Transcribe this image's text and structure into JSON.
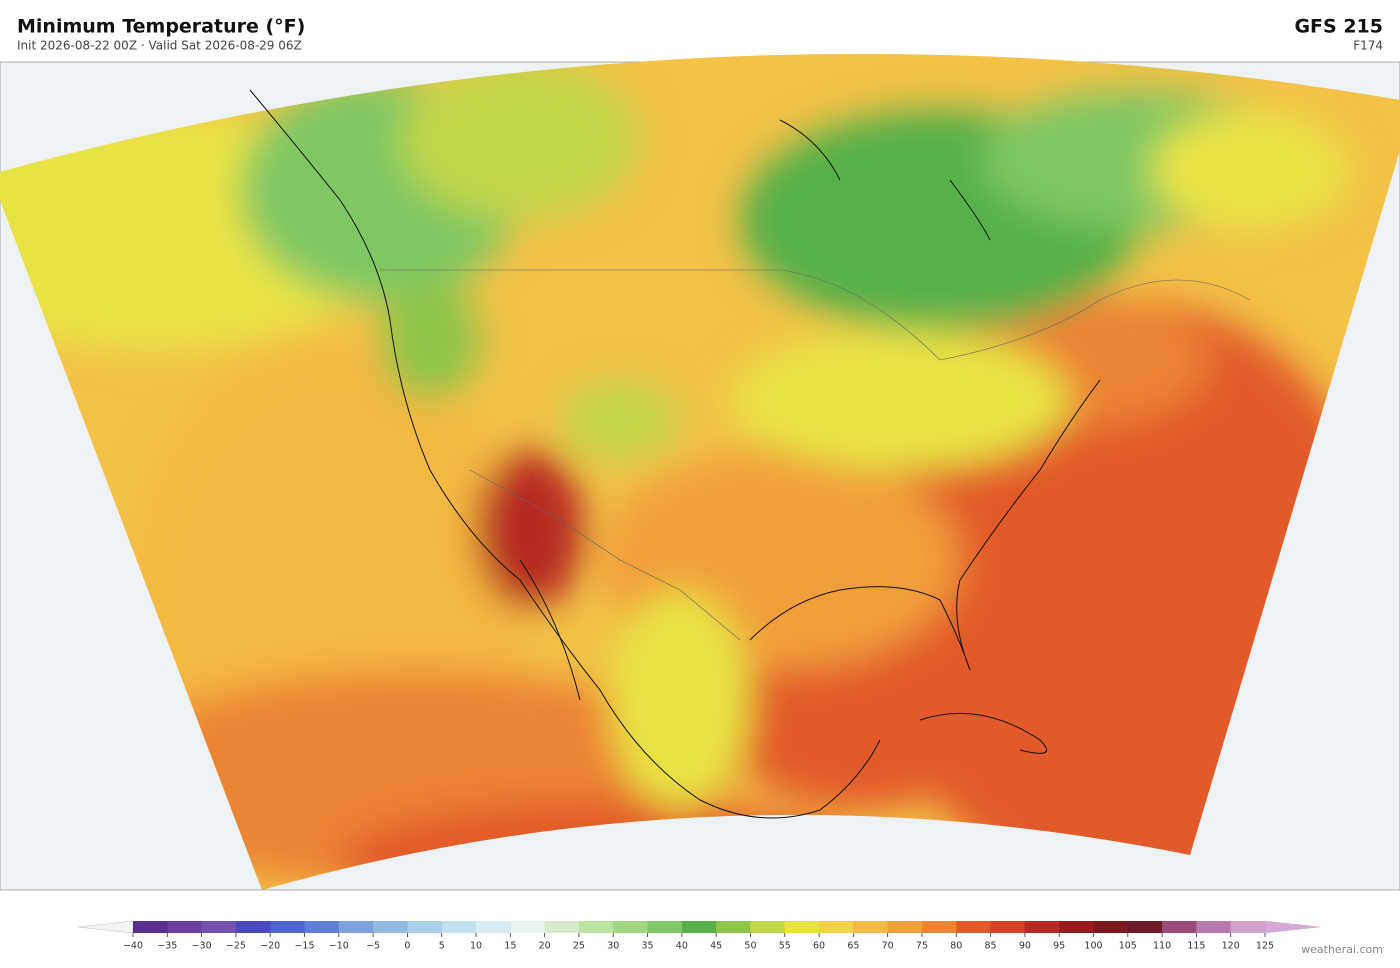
{
  "header": {
    "title": "Minimum Temperature  (°F)",
    "subtitle": "Init 2026-08-22 00Z  ·  Valid Sat 2026-08-29 06Z",
    "model": "GFS  215",
    "forecast_hour": "F174"
  },
  "colorbar": {
    "lim": [
      -40,
      125
    ],
    "ticks": [
      {
        "value": -40,
        "label": "−40"
      },
      {
        "value": -35,
        "label": "−35"
      },
      {
        "value": -30,
        "label": "−30"
      },
      {
        "value": -25,
        "label": "−25"
      },
      {
        "value": -20,
        "label": "−20"
      },
      {
        "value": -15,
        "label": "−15"
      },
      {
        "value": -10,
        "label": "−10"
      },
      {
        "value": -5,
        "label": "−5"
      },
      0,
      5,
      10,
      15,
      20,
      25,
      30,
      35,
      40,
      45,
      50,
      55,
      60,
      65,
      70,
      75,
      80,
      85,
      90,
      95,
      100,
      105,
      110,
      115,
      120,
      125
    ],
    "colors": [
      "#5b2d91",
      "#6a3fa0",
      "#7450b0",
      "#4b4bbf",
      "#4d63cf",
      "#5c80d8",
      "#7aa3dd",
      "#8fbbe2",
      "#a8d0e8",
      "#c2e1ef",
      "#d6ecf2",
      "#e6f3ef",
      "#d5ebcc",
      "#bce3a0",
      "#9fd67f",
      "#7ec764",
      "#55b04a",
      "#8ec44a",
      "#c2d64a",
      "#e8e344",
      "#f3d24a",
      "#f4b942",
      "#f19f3a",
      "#ec8434",
      "#e25a2a",
      "#d34127",
      "#b72a23",
      "#961c1e",
      "#7a1a1c",
      "#6e1a28",
      "#9b4a7a",
      "#b87aae",
      "#d3a2cc"
    ]
  },
  "footer": {
    "credit": "weatherai.com"
  }
}
